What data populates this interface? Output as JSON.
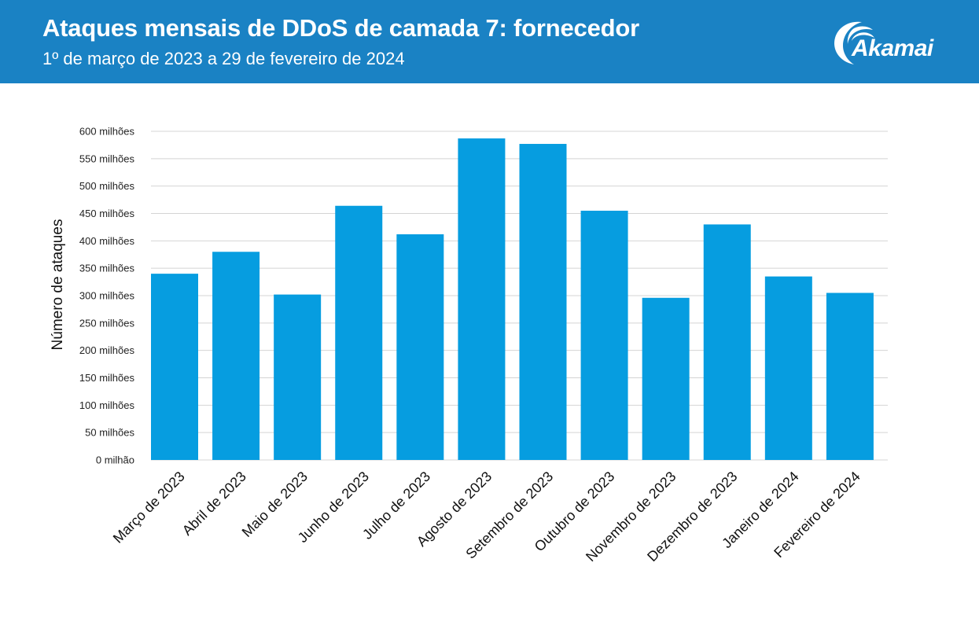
{
  "header": {
    "title": "Ataques mensais de DDoS de camada 7: fornecedor",
    "subtitle": "1º de março de 2023 a 29 de fevereiro de 2024",
    "logo_text": "Akamai",
    "background_color": "#1a82c4",
    "logo_icon": "akamai-wave-logo-icon"
  },
  "chart_data": {
    "type": "bar",
    "title": "Ataques mensais de DDoS de camada 7: fornecedor",
    "subtitle": "1º de março de 2023 a 29 de fevereiro de 2024",
    "xlabel": "",
    "ylabel": "Número de ataques",
    "ylim": [
      0,
      600
    ],
    "yticks": [
      0,
      50,
      100,
      150,
      200,
      250,
      300,
      350,
      400,
      450,
      500,
      550,
      600
    ],
    "ytick_labels": [
      "0 milhão",
      "50 milhões",
      "100 milhões",
      "150 milhões",
      "200 milhões",
      "250 milhões",
      "300 milhões",
      "350 milhões",
      "400 milhões",
      "450 milhões",
      "500 milhões",
      "550 milhões",
      "600 milhões"
    ],
    "unit": "milhões",
    "grid": true,
    "legend": "none",
    "bar_color": "#069de0",
    "categories": [
      "Março de 2023",
      "Abril de 2023",
      "Maio de 2023",
      "Junho de 2023",
      "Julho de 2023",
      "Agosto de 2023",
      "Setembro de 2023",
      "Outubro de 2023",
      "Novembro de 2023",
      "Dezembro de 2023",
      "Janeiro de 2024",
      "Fevereiro de 2024"
    ],
    "values": [
      340,
      380,
      302,
      464,
      412,
      587,
      577,
      455,
      296,
      430,
      335,
      305
    ]
  }
}
